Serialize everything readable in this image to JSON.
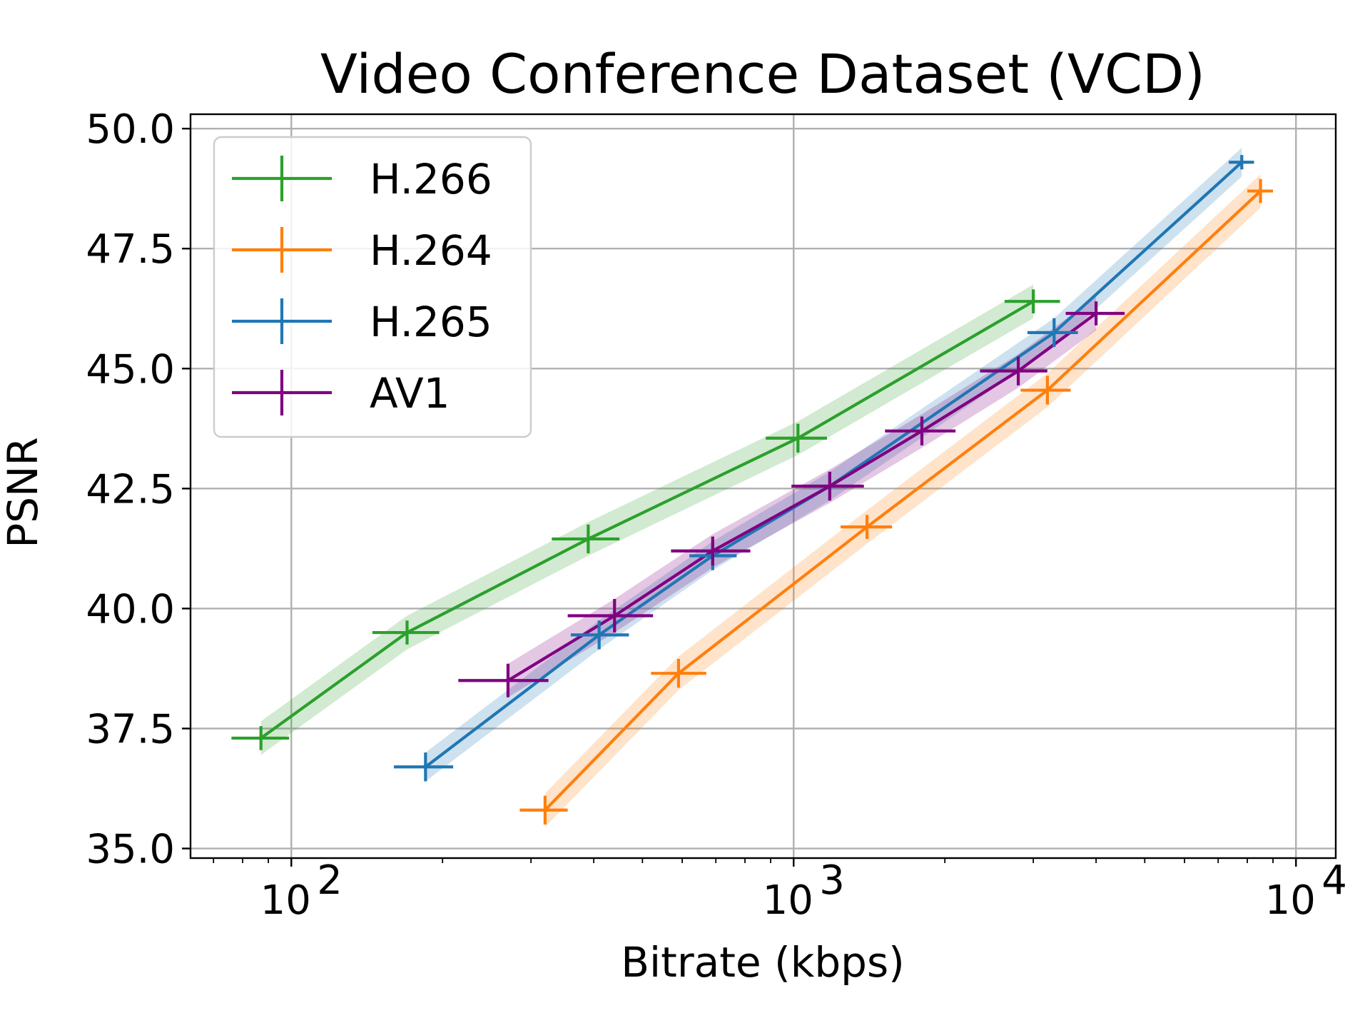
{
  "chart_data": {
    "type": "line",
    "title": "Video Conference Dataset (VCD)",
    "xlabel": "Bitrate (kbps)",
    "ylabel": "PSNR",
    "xscale": "log",
    "xlim": [
      63,
      12000
    ],
    "ylim": [
      34.8,
      50.3
    ],
    "yticks": [
      35.0,
      37.5,
      40.0,
      42.5,
      45.0,
      47.5,
      50.0
    ],
    "ytick_labels": [
      "35.0",
      "37.5",
      "40.0",
      "42.5",
      "45.0",
      "47.5",
      "50.0"
    ],
    "xticks": [
      100,
      1000,
      10000
    ],
    "xtick_labels": [
      {
        "base": "10",
        "exp": "2"
      },
      {
        "base": "10",
        "exp": "3"
      },
      {
        "base": "10",
        "exp": "4"
      }
    ],
    "grid": true,
    "legend_position": "upper-left",
    "series": [
      {
        "name": "H.266",
        "color": "#2ca02c",
        "x": [
          87,
          170,
          390,
          1020,
          3000
        ],
        "y": [
          37.3,
          39.5,
          41.45,
          43.55,
          46.4
        ],
        "xerr_lo": [
          11,
          25,
          60,
          140,
          370
        ],
        "xerr_hi": [
          12,
          27,
          60,
          145,
          390
        ],
        "yerr": [
          0.25,
          0.25,
          0.3,
          0.3,
          0.25
        ],
        "band": 0.35
      },
      {
        "name": "H.264",
        "color": "#ff7f0e",
        "x": [
          320,
          590,
          1400,
          3200,
          8500
        ],
        "y": [
          35.8,
          38.65,
          41.7,
          44.55,
          48.7
        ],
        "xerr_lo": [
          35,
          70,
          160,
          370,
          500
        ],
        "xerr_hi": [
          35,
          80,
          170,
          360,
          500
        ],
        "yerr": [
          0.3,
          0.3,
          0.25,
          0.3,
          0.25
        ],
        "band": 0.35
      },
      {
        "name": "H.265",
        "color": "#1f77b4",
        "x": [
          185,
          410,
          690,
          1180,
          3300,
          7800
        ],
        "y": [
          36.7,
          39.45,
          41.1,
          42.55,
          45.75,
          49.3
        ],
        "xerr_lo": [
          25,
          50,
          70,
          130,
          380,
          450
        ],
        "xerr_hi": [
          25,
          60,
          80,
          140,
          380,
          450
        ],
        "yerr": [
          0.3,
          0.3,
          0.3,
          0.3,
          0.3,
          0.15
        ],
        "band": 0.3
      },
      {
        "name": "AV1",
        "color": "#800080",
        "x": [
          270,
          440,
          690,
          1180,
          1800,
          2800,
          4000
        ],
        "y": [
          38.5,
          39.85,
          41.2,
          42.55,
          43.7,
          44.95,
          46.15
        ],
        "xerr_lo": [
          55,
          85,
          120,
          190,
          280,
          450,
          520
        ],
        "xerr_hi": [
          55,
          85,
          130,
          200,
          300,
          400,
          560
        ],
        "yerr": [
          0.35,
          0.35,
          0.3,
          0.3,
          0.3,
          0.3,
          0.25
        ],
        "band": 0.35
      }
    ]
  }
}
